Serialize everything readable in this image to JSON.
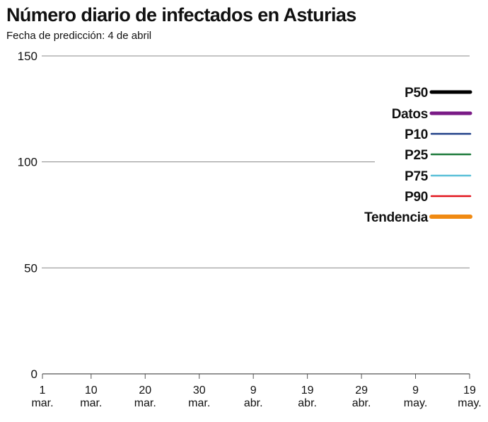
{
  "title": "Número diario de infectados en Asturias",
  "subtitle": "Fecha de predicción: 4 de abril",
  "colors": {
    "P50": "#000000",
    "Datos": "#7a1a86",
    "P10": "#1f3f87",
    "P25": "#1d7a3a",
    "P75": "#5bc0d8",
    "P90": "#e1141c",
    "Tendencia": "#f08a12",
    "grid": "#8a8a8a"
  },
  "chart_data": {
    "type": "line",
    "title": "Número diario de infectados en Asturias",
    "subtitle": "Fecha de predicción: 4 de abril",
    "xlabel": "",
    "ylabel": "",
    "ylim": [
      0,
      150
    ],
    "yticks": [
      0,
      50,
      100,
      150
    ],
    "xlim": [
      "2020-03-01",
      "2020-05-19"
    ],
    "xticks": [
      {
        "date": "2020-03-01",
        "day": "1",
        "month": "mar."
      },
      {
        "date": "2020-03-10",
        "day": "10",
        "month": "mar."
      },
      {
        "date": "2020-03-20",
        "day": "20",
        "month": "mar."
      },
      {
        "date": "2020-03-30",
        "day": "30",
        "month": "mar."
      },
      {
        "date": "2020-04-09",
        "day": "9",
        "month": "abr."
      },
      {
        "date": "2020-04-19",
        "day": "19",
        "month": "abr."
      },
      {
        "date": "2020-04-29",
        "day": "29",
        "month": "abr."
      },
      {
        "date": "2020-05-09",
        "day": "9",
        "month": "may."
      },
      {
        "date": "2020-05-19",
        "day": "19",
        "month": "may."
      }
    ],
    "grid": true,
    "legend_position": "right",
    "series": [
      {
        "name": "P50",
        "values": []
      },
      {
        "name": "Datos",
        "values": []
      },
      {
        "name": "P10",
        "values": []
      },
      {
        "name": "P25",
        "values": []
      },
      {
        "name": "P75",
        "values": []
      },
      {
        "name": "P90",
        "values": []
      },
      {
        "name": "Tendencia",
        "values": []
      }
    ]
  }
}
